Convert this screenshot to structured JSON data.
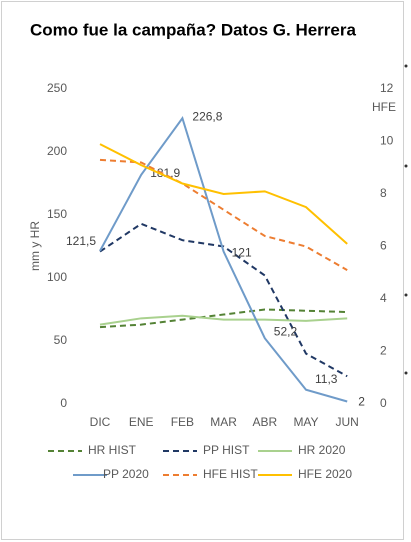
{
  "chart_data": {
    "type": "line",
    "title": "Como fue la campaña? Datos G. Herrera",
    "ylabel": "mm y HR",
    "y2label": "HFE",
    "categories": [
      "DIC",
      "ENE",
      "FEB",
      "MAR",
      "ABR",
      "MAY",
      "JUN"
    ],
    "ylim": [
      0,
      250
    ],
    "yticks": [
      0,
      50,
      100,
      150,
      200,
      250
    ],
    "y2lim": [
      0,
      12
    ],
    "y2ticks": [
      0,
      2,
      4,
      6,
      8,
      10,
      12
    ],
    "series": [
      {
        "name": "HR HIST",
        "color": "#548235",
        "dash": true,
        "values": [
          61,
          63,
          67,
          71,
          75,
          74,
          73
        ]
      },
      {
        "name": "PP HIST",
        "color": "#203864",
        "dash": true,
        "values": [
          121,
          143,
          130,
          125,
          102,
          40,
          22
        ]
      },
      {
        "name": "HR 2020",
        "color": "#a9d18e",
        "dash": false,
        "values": [
          63,
          68,
          70,
          67,
          67,
          66,
          68
        ]
      },
      {
        "name": "PP 2020",
        "color": "#6f9bc9",
        "dash": false,
        "values": [
          121.5,
          181.9,
          226.8,
          121,
          52.2,
          11.3,
          2
        ],
        "value_labels": [
          "121,5",
          "181,9",
          "226,8",
          "121",
          "52,2",
          "11,3",
          "2"
        ]
      },
      {
        "name": "HFE HIST",
        "color": "#ed7d31",
        "dash": true,
        "axis": "y2",
        "values": [
          9.3,
          9.2,
          8.4,
          7.4,
          6.4,
          6.0,
          5.1
        ]
      },
      {
        "name": "HFE 2020",
        "color": "#ffc000",
        "dash": false,
        "axis": "y2",
        "values": [
          9.9,
          9.1,
          8.4,
          8.0,
          8.1,
          7.5,
          6.1
        ]
      }
    ]
  }
}
